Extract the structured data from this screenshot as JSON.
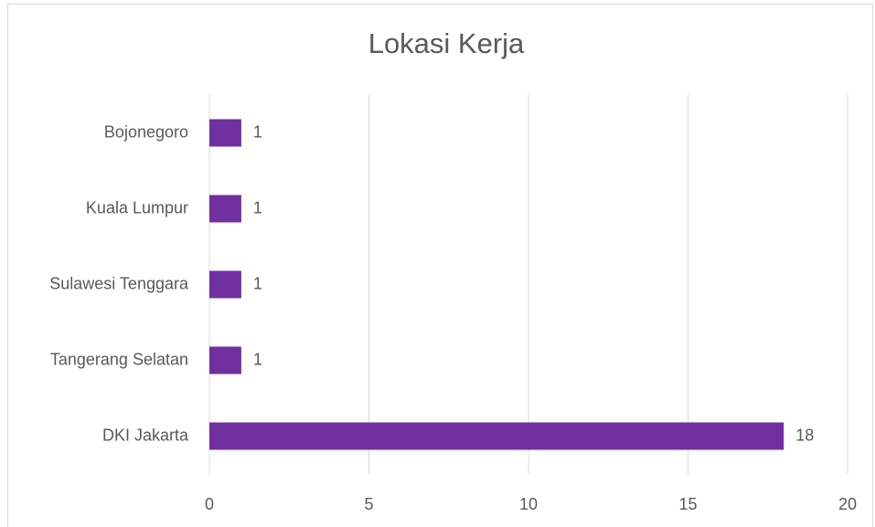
{
  "chart_data": {
    "type": "bar",
    "orientation": "horizontal",
    "title": "Lokasi Kerja",
    "categories": [
      "Bojonegoro",
      "Kuala Lumpur",
      "Sulawesi Tenggara",
      "Tangerang Selatan",
      "DKI Jakarta"
    ],
    "values": [
      1,
      1,
      1,
      1,
      18
    ],
    "color": "#7030a0",
    "xlim": [
      0,
      20
    ],
    "xticks": [
      0,
      5,
      10,
      15,
      20
    ],
    "grid": true,
    "data_labels": true
  }
}
